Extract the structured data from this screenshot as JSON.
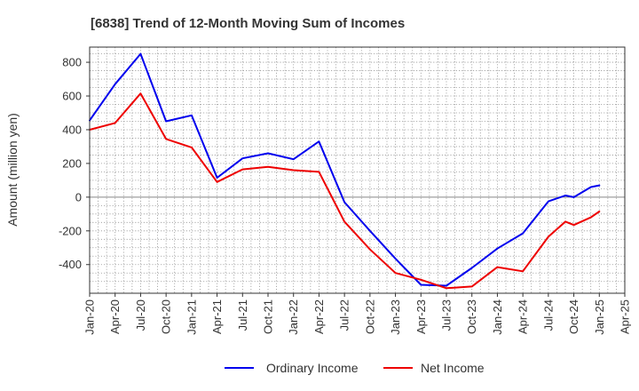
{
  "chart_data": {
    "type": "line",
    "title": "[6838]  Trend of 12-Month Moving Sum of Incomes",
    "xlabel": "",
    "ylabel": "Amount (million yen)",
    "ylim": [
      -570,
      890
    ],
    "yticks": [
      -400,
      -200,
      0,
      200,
      400,
      600,
      800
    ],
    "ytick_labels": [
      "-400",
      "-200",
      "0",
      "200",
      "400",
      "600",
      "800"
    ],
    "categories": [
      "Jan-20",
      "Apr-20",
      "Jul-20",
      "Oct-20",
      "Jan-21",
      "Apr-21",
      "Jul-21",
      "Oct-21",
      "Jan-22",
      "Apr-22",
      "Jul-22",
      "Oct-22",
      "Jan-23",
      "Apr-23",
      "Jul-23",
      "Oct-23",
      "Jan-24",
      "Apr-24",
      "Jul-24",
      "Oct-24",
      "Jan-25",
      "Apr-25"
    ],
    "grid": true,
    "legend_position": "bottom",
    "series": [
      {
        "name": "Ordinary Income",
        "color": "#0000ee",
        "points": [
          [
            0,
            455
          ],
          [
            1,
            670
          ],
          [
            2,
            850
          ],
          [
            3,
            450
          ],
          [
            4,
            485
          ],
          [
            5,
            115
          ],
          [
            6,
            230
          ],
          [
            7,
            260
          ],
          [
            8,
            225
          ],
          [
            9,
            330
          ],
          [
            10,
            -30
          ],
          [
            11,
            -200
          ],
          [
            12,
            -365
          ],
          [
            13,
            -520
          ],
          [
            14,
            -525
          ],
          [
            15,
            -420
          ],
          [
            16,
            -305
          ],
          [
            17,
            -215
          ],
          [
            18,
            -25
          ],
          [
            18.67,
            10
          ],
          [
            19,
            0
          ],
          [
            19.67,
            60
          ],
          [
            20,
            70
          ]
        ]
      },
      {
        "name": "Net Income",
        "color": "#ee0000",
        "points": [
          [
            0,
            400
          ],
          [
            1,
            440
          ],
          [
            2,
            615
          ],
          [
            3,
            345
          ],
          [
            4,
            295
          ],
          [
            5,
            90
          ],
          [
            6,
            165
          ],
          [
            7,
            180
          ],
          [
            8,
            160
          ],
          [
            9,
            150
          ],
          [
            10,
            -145
          ],
          [
            11,
            -310
          ],
          [
            12,
            -450
          ],
          [
            13,
            -490
          ],
          [
            14,
            -540
          ],
          [
            15,
            -530
          ],
          [
            16,
            -415
          ],
          [
            17,
            -440
          ],
          [
            18,
            -235
          ],
          [
            18.67,
            -145
          ],
          [
            19,
            -165
          ],
          [
            19.67,
            -120
          ],
          [
            20,
            -85
          ]
        ]
      }
    ]
  }
}
